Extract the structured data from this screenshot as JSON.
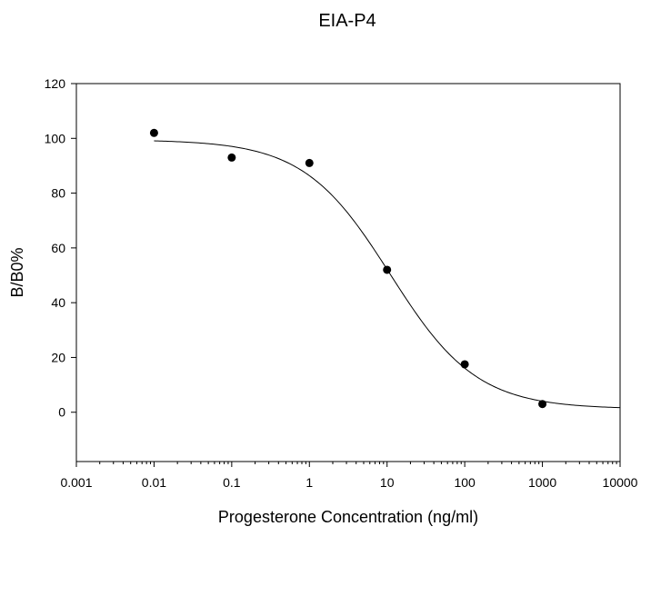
{
  "chart_data": {
    "type": "scatter",
    "title": "EIA-P4",
    "xlabel": "Progesterone Concentration (ng/ml)",
    "ylabel": "B/B0%",
    "x_scale": "log",
    "xlim": [
      0.001,
      10000
    ],
    "ylim": [
      -18,
      120
    ],
    "x_ticks": [
      0.001,
      0.01,
      0.1,
      1,
      10,
      100,
      1000,
      10000
    ],
    "x_tick_labels": [
      "0.001",
      "0.01",
      "0.1",
      "1",
      "10",
      "100",
      "1000",
      "10000"
    ],
    "y_ticks": [
      0,
      20,
      40,
      60,
      80,
      100,
      120
    ],
    "y_tick_labels": [
      "0",
      "20",
      "40",
      "60",
      "80",
      "100",
      "120"
    ],
    "grid": false,
    "legend": "none",
    "colors": {
      "points": "#000000",
      "curve": "#000000",
      "axes": "#000000"
    },
    "series": [
      {
        "type": "scatter",
        "x": [
          0.01,
          0.1,
          1,
          10,
          100,
          1000
        ],
        "y": [
          102,
          93,
          91,
          52,
          17.5,
          3
        ]
      },
      {
        "type": "fitted-curve",
        "model": "4-parameter logistic",
        "params": {
          "top": 99.5,
          "bottom": 1.2,
          "ec50": 11,
          "hill": 0.78
        },
        "x_range": [
          0.01,
          10000
        ]
      }
    ]
  }
}
